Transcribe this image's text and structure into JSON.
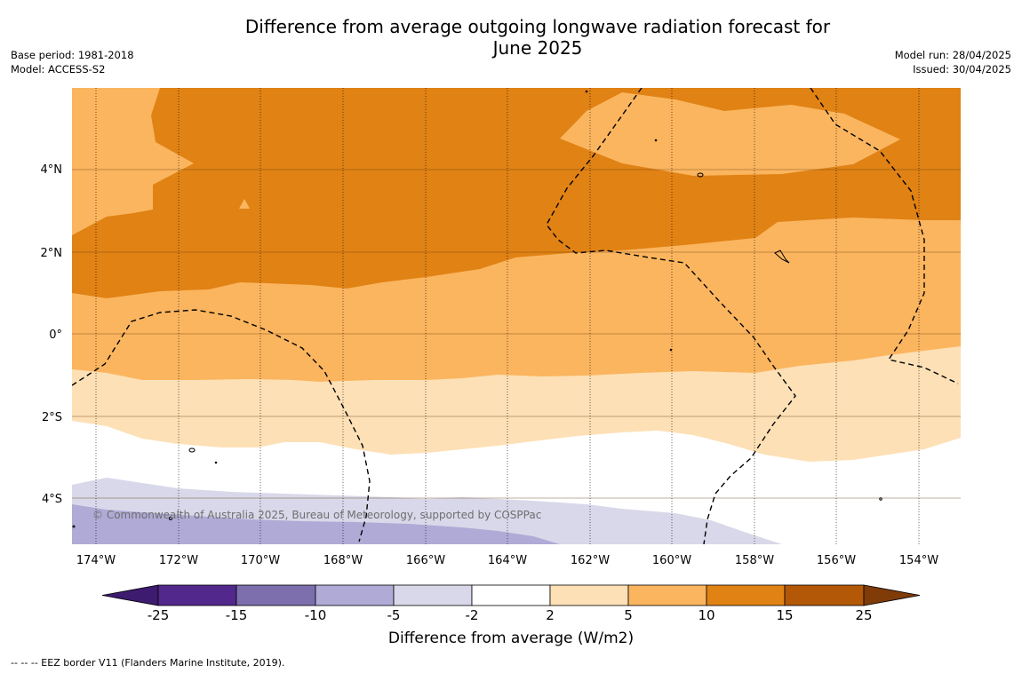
{
  "title_line1": "Difference from average outgoing longwave radiation forecast for",
  "title_line2": "June 2025",
  "meta_left": {
    "base_period": "Base period: 1981-2018",
    "model": "Model: ACCESS-S2"
  },
  "meta_right": {
    "model_run": "Model run: 28/04/2025",
    "issued": "Issued: 30/04/2025"
  },
  "map": {
    "lon_labels": [
      "174°W",
      "172°W",
      "170°W",
      "168°W",
      "166°W",
      "164°W",
      "162°W",
      "160°W",
      "158°W",
      "156°W",
      "154°W"
    ],
    "lat_labels": [
      "4°N",
      "2°N",
      "0°",
      "2°S",
      "4°S"
    ],
    "copyright": "© Commonwealth of Australia 2025, Bureau of Meteorology, supported by COSPPac"
  },
  "colorbar": {
    "labels": [
      "-25",
      "-15",
      "-10",
      "-5",
      "-2",
      "2",
      "5",
      "10",
      "15",
      "25"
    ],
    "colors": [
      "#3d1b6e",
      "#52288c",
      "#7d6fae",
      "#b0aad6",
      "#d8d8ea",
      "#ffffff",
      "#fde0b5",
      "#fbb55f",
      "#e08214",
      "#b35806",
      "#7f3b08"
    ],
    "title": "Difference from average (W/m2)"
  },
  "footer": "--  --  -- EEZ border V11 (Flanders Marine Institute, 2019)."
}
